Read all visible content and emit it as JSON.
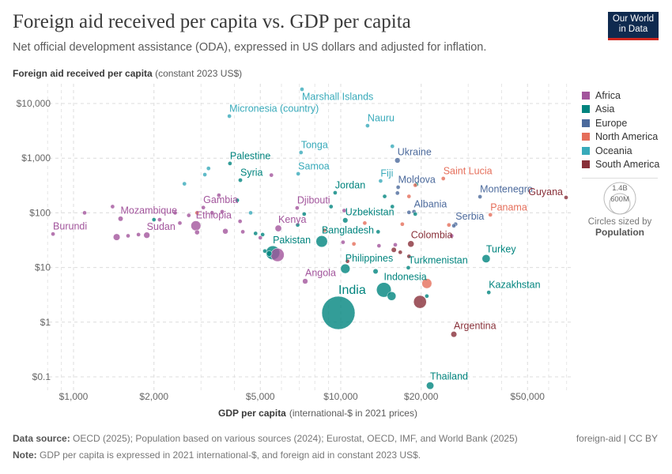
{
  "header": {
    "title": "Foreign aid received per capita vs. GDP per capita",
    "subtitle": "Net official development assistance (ODA), expressed in US dollars and adjusted for inflation.",
    "logo_line1": "Our World",
    "logo_line2": "in Data"
  },
  "footer": {
    "source_label": "Data source:",
    "source_text": "OECD (2025); Population based on various sources (2024); Eurostat, OECD, IMF, and World Bank (2025)",
    "license": "foreign-aid | CC BY",
    "note_label": "Note:",
    "note_text": "GDP per capita is expressed in 2021 international-$, and foreign aid in constant 2023 US$."
  },
  "legend": {
    "items": [
      {
        "label": "Africa",
        "color": "#a2559c"
      },
      {
        "label": "Asia",
        "color": "#00847e"
      },
      {
        "label": "Europe",
        "color": "#4c6a9c"
      },
      {
        "label": "North America",
        "color": "#e56e5a"
      },
      {
        "label": "Oceania",
        "color": "#38aaba"
      },
      {
        "label": "South America",
        "color": "#883039"
      }
    ],
    "size_key_large": "1.4B",
    "size_key_small": "600M",
    "size_caption": "Circles sized by",
    "size_variable": "Population"
  },
  "chart_data": {
    "type": "scatter",
    "title": "Foreign aid received per capita vs. GDP per capita",
    "ylabel_bold": "Foreign aid received per capita",
    "ylabel_unit": "(constant 2023 US$)",
    "xlabel_bold": "GDP per capita",
    "xlabel_unit": "(international-$ in 2021 prices)",
    "x_scale": "log",
    "y_scale": "log",
    "xlim": [
      780,
      72000
    ],
    "ylim": [
      0.055,
      19000
    ],
    "grid": true,
    "legend_position": "right",
    "x_ticks": [
      {
        "value": 1000,
        "label": "$1,000"
      },
      {
        "value": 2000,
        "label": "$2,000"
      },
      {
        "value": 5000,
        "label": "$5,000"
      },
      {
        "value": 10000,
        "label": "$10,000"
      },
      {
        "value": 20000,
        "label": "$20,000"
      },
      {
        "value": 50000,
        "label": "$50,000"
      }
    ],
    "y_ticks": [
      {
        "value": 0.1,
        "label": "$0.1"
      },
      {
        "value": 1,
        "label": "$1"
      },
      {
        "value": 10,
        "label": "$10"
      },
      {
        "value": 100,
        "label": "$100"
      },
      {
        "value": 1000,
        "label": "$1,000"
      },
      {
        "value": 10000,
        "label": "$10,000"
      }
    ],
    "points": [
      {
        "label": "Marshall Islands",
        "continent": "Oceania",
        "x": 7160,
        "y": 18200,
        "pop": 0.04
      },
      {
        "label": "Micronesia (country)",
        "continent": "Oceania",
        "x": 3830,
        "y": 5870,
        "pop": 0.1
      },
      {
        "label": "Nauru",
        "continent": "Oceania",
        "x": 12600,
        "y": 3930,
        "pop": 0.01
      },
      {
        "label": "Tonga",
        "continent": "Oceania",
        "x": 7100,
        "y": 1270,
        "pop": 0.1
      },
      {
        "label": "Ukraine",
        "continent": "Europe",
        "x": 16300,
        "y": 910,
        "pop": 38
      },
      {
        "label": "Palestine",
        "continent": "Asia",
        "x": 3850,
        "y": 800,
        "pop": 5.4
      },
      {
        "label": "Samoa",
        "continent": "Oceania",
        "x": 6930,
        "y": 518,
        "pop": 0.2
      },
      {
        "label": "Saint Lucia",
        "continent": "North America",
        "x": 24200,
        "y": 424,
        "pop": 0.18
      },
      {
        "label": "Syria",
        "continent": "Asia",
        "x": 4210,
        "y": 396,
        "pop": 23
      },
      {
        "label": "Fiji",
        "continent": "Oceania",
        "x": 14100,
        "y": 383,
        "pop": 0.9
      },
      {
        "label": "Moldova",
        "continent": "Europe",
        "x": 16400,
        "y": 294,
        "pop": 3
      },
      {
        "label": "Jordan",
        "continent": "Asia",
        "x": 9530,
        "y": 233,
        "pop": 11
      },
      {
        "label": "Montenegro",
        "continent": "Europe",
        "x": 33200,
        "y": 197,
        "pop": 0.6
      },
      {
        "label": "Guyana",
        "continent": "South America",
        "x": 69700,
        "y": 191,
        "pop": 0.8
      },
      {
        "label": "Gambia",
        "continent": "Africa",
        "x": 3060,
        "y": 125,
        "pop": 2.7
      },
      {
        "label": "Djibouti",
        "continent": "Africa",
        "x": 6870,
        "y": 123,
        "pop": 1.1
      },
      {
        "label": "Albania",
        "continent": "Europe",
        "x": 18800,
        "y": 105,
        "pop": 2.8
      },
      {
        "label": "Panama",
        "continent": "North America",
        "x": 36300,
        "y": 92,
        "pop": 4.4
      },
      {
        "label": "Mozambique",
        "continent": "Africa",
        "x": 1500,
        "y": 78,
        "pop": 33
      },
      {
        "label": "Uzbekistan",
        "continent": "Asia",
        "x": 10400,
        "y": 73,
        "pop": 36
      },
      {
        "label": "Serbia",
        "continent": "Europe",
        "x": 26900,
        "y": 62,
        "pop": 6.7
      },
      {
        "label": "Ethiopia",
        "continent": "Africa",
        "x": 2870,
        "y": 58,
        "pop": 129
      },
      {
        "label": "Kenya",
        "continent": "Africa",
        "x": 5840,
        "y": 52,
        "pop": 56
      },
      {
        "label": "Burundi",
        "continent": "Africa",
        "x": 838,
        "y": 41,
        "pop": 13
      },
      {
        "label": "Sudan",
        "continent": "Africa",
        "x": 1880,
        "y": 39,
        "pop": 50
      },
      {
        "label": "Bangladesh",
        "continent": "Asia",
        "x": 8490,
        "y": 30,
        "pop": 173
      },
      {
        "label": "Colombia",
        "continent": "South America",
        "x": 18300,
        "y": 27,
        "pop": 53
      },
      {
        "label": "Pakistan",
        "continent": "Asia",
        "x": 5570,
        "y": 18.6,
        "pop": 250
      },
      {
        "label": "Turkey",
        "continent": "Asia",
        "x": 35000,
        "y": 14.5,
        "pop": 86
      },
      {
        "label": "Philippines",
        "continent": "Asia",
        "x": 10400,
        "y": 9.5,
        "pop": 116
      },
      {
        "label": "Turkmenistan",
        "continent": "Asia",
        "x": 17900,
        "y": 9.9,
        "pop": 7.5
      },
      {
        "label": "Angola",
        "continent": "Africa",
        "x": 7360,
        "y": 5.6,
        "pop": 38
      },
      {
        "label": "Indonesia",
        "continent": "Asia",
        "x": 14500,
        "y": 3.9,
        "pop": 280
      },
      {
        "label": "Kazakhstan",
        "continent": "Asia",
        "x": 35800,
        "y": 3.5,
        "pop": 20
      },
      {
        "label": "India",
        "continent": "Asia",
        "x": 9800,
        "y": 1.48,
        "pop": 1440
      },
      {
        "label": "Argentina",
        "continent": "South America",
        "x": 26500,
        "y": 0.6,
        "pop": 46
      },
      {
        "label": "Thailand",
        "continent": "Asia",
        "x": 21600,
        "y": 0.069,
        "pop": 72
      },
      {
        "label": "",
        "continent": "Africa",
        "x": 5800,
        "y": 17,
        "pop": 230
      },
      {
        "label": "",
        "continent": "Asia",
        "x": 5400,
        "y": 18,
        "pop": 40
      },
      {
        "label": "",
        "continent": "Asia",
        "x": 5200,
        "y": 20,
        "pop": 10
      },
      {
        "label": "",
        "continent": "South America",
        "x": 19800,
        "y": 2.35,
        "pop": 216
      },
      {
        "label": "",
        "continent": "North America",
        "x": 21000,
        "y": 5.1,
        "pop": 129
      },
      {
        "label": "",
        "continent": "Asia",
        "x": 15500,
        "y": 3.0,
        "pop": 100
      },
      {
        "label": "",
        "continent": "Asia",
        "x": 21000,
        "y": 3.0,
        "pop": 1
      },
      {
        "label": "",
        "continent": "Asia",
        "x": 13500,
        "y": 8.5,
        "pop": 34
      },
      {
        "label": "",
        "continent": "Africa",
        "x": 1450,
        "y": 36,
        "pop": 60
      },
      {
        "label": "",
        "continent": "Africa",
        "x": 1600,
        "y": 38,
        "pop": 15
      },
      {
        "label": "",
        "continent": "Africa",
        "x": 1750,
        "y": 40,
        "pop": 20
      },
      {
        "label": "",
        "continent": "Africa",
        "x": 2900,
        "y": 44,
        "pop": 30
      },
      {
        "label": "",
        "continent": "Africa",
        "x": 3700,
        "y": 46,
        "pop": 40
      },
      {
        "label": "",
        "continent": "Africa",
        "x": 4300,
        "y": 45,
        "pop": 5
      },
      {
        "label": "",
        "continent": "Africa",
        "x": 2400,
        "y": 100,
        "pop": 6
      },
      {
        "label": "",
        "continent": "Africa",
        "x": 2700,
        "y": 90,
        "pop": 4
      },
      {
        "label": "",
        "continent": "Africa",
        "x": 3300,
        "y": 100,
        "pop": 4
      },
      {
        "label": "",
        "continent": "Africa",
        "x": 3600,
        "y": 105,
        "pop": 3
      },
      {
        "label": "",
        "continent": "Africa",
        "x": 3500,
        "y": 210,
        "pop": 2
      },
      {
        "label": "",
        "continent": "Africa",
        "x": 1100,
        "y": 100,
        "pop": 2
      },
      {
        "label": "",
        "continent": "Africa",
        "x": 1400,
        "y": 130,
        "pop": 6
      },
      {
        "label": "",
        "continent": "Africa",
        "x": 2100,
        "y": 75,
        "pop": 4
      },
      {
        "label": "",
        "continent": "Africa",
        "x": 2500,
        "y": 65,
        "pop": 3
      },
      {
        "label": "",
        "continent": "Africa",
        "x": 4200,
        "y": 70,
        "pop": 3
      },
      {
        "label": "",
        "continent": "Africa",
        "x": 5000,
        "y": 35,
        "pop": 3
      },
      {
        "label": "",
        "continent": "Africa",
        "x": 5500,
        "y": 490,
        "pop": 1
      },
      {
        "label": "",
        "continent": "Africa",
        "x": 10300,
        "y": 110,
        "pop": 2
      },
      {
        "label": "",
        "continent": "Africa",
        "x": 13900,
        "y": 25,
        "pop": 10
      },
      {
        "label": "",
        "continent": "Africa",
        "x": 16000,
        "y": 26,
        "pop": 2
      },
      {
        "label": "",
        "continent": "Africa",
        "x": 10200,
        "y": 29,
        "pop": 12
      },
      {
        "label": "",
        "continent": "Africa",
        "x": 26000,
        "y": 38,
        "pop": 1
      },
      {
        "label": "",
        "continent": "Asia",
        "x": 2000,
        "y": 75,
        "pop": 17
      },
      {
        "label": "",
        "continent": "Asia",
        "x": 4100,
        "y": 170,
        "pop": 1
      },
      {
        "label": "",
        "continent": "Asia",
        "x": 4800,
        "y": 42,
        "pop": 2
      },
      {
        "label": "",
        "continent": "Asia",
        "x": 5100,
        "y": 40,
        "pop": 7
      },
      {
        "label": "",
        "continent": "Asia",
        "x": 7300,
        "y": 95,
        "pop": 1
      },
      {
        "label": "",
        "continent": "Asia",
        "x": 6900,
        "y": 60,
        "pop": 1
      },
      {
        "label": "",
        "continent": "Asia",
        "x": 9200,
        "y": 130,
        "pop": 1
      },
      {
        "label": "",
        "continent": "Asia",
        "x": 14600,
        "y": 200,
        "pop": 1
      },
      {
        "label": "",
        "continent": "Asia",
        "x": 15600,
        "y": 130,
        "pop": 1
      },
      {
        "label": "",
        "continent": "Asia",
        "x": 19200,
        "y": 330,
        "pop": 1
      },
      {
        "label": "",
        "continent": "Asia",
        "x": 19000,
        "y": 95,
        "pop": 1
      },
      {
        "label": "",
        "continent": "Asia",
        "x": 13800,
        "y": 45,
        "pop": 1
      },
      {
        "label": "",
        "continent": "Oceania",
        "x": 2600,
        "y": 340,
        "pop": 0.3
      },
      {
        "label": "",
        "continent": "Oceania",
        "x": 3200,
        "y": 650,
        "pop": 0.3
      },
      {
        "label": "",
        "continent": "Oceania",
        "x": 3100,
        "y": 500,
        "pop": 0.3
      },
      {
        "label": "",
        "continent": "Oceania",
        "x": 4600,
        "y": 100,
        "pop": 10
      },
      {
        "label": "",
        "continent": "Oceania",
        "x": 15600,
        "y": 1650,
        "pop": 0.1
      },
      {
        "label": "",
        "continent": "Europe",
        "x": 16300,
        "y": 230,
        "pop": 0.6
      },
      {
        "label": "",
        "continent": "Europe",
        "x": 18000,
        "y": 102,
        "pop": 2
      },
      {
        "label": "",
        "continent": "Europe",
        "x": 26500,
        "y": 58,
        "pop": 3
      },
      {
        "label": "",
        "continent": "North America",
        "x": 2900,
        "y": 100,
        "pop": 11
      },
      {
        "label": "",
        "continent": "North America",
        "x": 8700,
        "y": 48,
        "pop": 10
      },
      {
        "label": "",
        "continent": "North America",
        "x": 12300,
        "y": 65,
        "pop": 6
      },
      {
        "label": "",
        "continent": "North America",
        "x": 18000,
        "y": 200,
        "pop": 0.1
      },
      {
        "label": "",
        "continent": "North America",
        "x": 19000,
        "y": 320,
        "pop": 0.1
      },
      {
        "label": "",
        "continent": "North America",
        "x": 25400,
        "y": 60,
        "pop": 5
      },
      {
        "label": "",
        "continent": "North America",
        "x": 17000,
        "y": 62,
        "pop": 1
      },
      {
        "label": "",
        "continent": "North America",
        "x": 11200,
        "y": 27,
        "pop": 2
      },
      {
        "label": "",
        "continent": "South America",
        "x": 10600,
        "y": 13,
        "pop": 12
      },
      {
        "label": "",
        "continent": "South America",
        "x": 15800,
        "y": 21,
        "pop": 34
      },
      {
        "label": "",
        "continent": "South America",
        "x": 16700,
        "y": 19,
        "pop": 7
      },
      {
        "label": "",
        "continent": "South America",
        "x": 18000,
        "y": 16,
        "pop": 3
      }
    ]
  }
}
